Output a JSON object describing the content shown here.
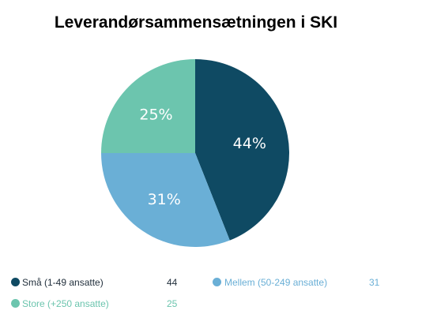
{
  "chart_data": {
    "type": "pie",
    "title": "Leverandørsammensætningen i SKI",
    "slices": [
      {
        "label": "Små (1-49 ansatte)",
        "value": 44,
        "display": "44%",
        "color": "#0f4a63"
      },
      {
        "label": "Mellem (50-249 ansatte)",
        "value": 31,
        "display": "31%",
        "color": "#6aafd6"
      },
      {
        "label": "Store (+250 ansatte)",
        "value": 25,
        "display": "25%",
        "color": "#6cc5ae"
      }
    ],
    "legend_placement": "bottom"
  }
}
